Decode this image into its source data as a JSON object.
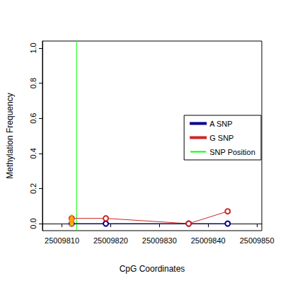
{
  "chart_data": {
    "type": "line",
    "x_label": "CpG Coordinates",
    "y_label": "Methylation Frequency",
    "xlim": [
      25009806,
      25009851
    ],
    "xticks": [
      25009810,
      25009820,
      25009830,
      25009840,
      25009850
    ],
    "ylim": [
      -0.04,
      1.04
    ],
    "yticks": [
      {
        "value": 0,
        "label": "0.0"
      },
      {
        "value": 0.2,
        "label": "0.2"
      },
      {
        "value": 0.4,
        "label": "0.4"
      },
      {
        "value": 0.6,
        "label": "0.6"
      },
      {
        "value": 0.8,
        "label": "0.8"
      },
      {
        "value": 1,
        "label": "1.0"
      }
    ],
    "grid": false,
    "legend": "right",
    "series": [
      {
        "name": "A SNP",
        "color": "#00008b",
        "type": "line",
        "marker": "circle_open",
        "x": [
          25009812,
          25009819,
          25009836,
          25009844
        ],
        "values": [
          0,
          0,
          0,
          0
        ]
      },
      {
        "name": "G SNP",
        "color": "#cd2626",
        "type": "line",
        "marker": "circle_open",
        "x": [
          25009812,
          25009819,
          25009836,
          25009844
        ],
        "values": [
          0.03,
          0.03,
          0,
          0.07
        ]
      },
      {
        "name": "SNP Position",
        "color": "#00ff00",
        "type": "vline",
        "x": [
          25009813
        ]
      },
      {
        "color": "#ffa500",
        "type": "scatter",
        "marker": "triangle",
        "x": [
          25009812,
          25009812,
          25009812,
          25009812,
          25009812
        ],
        "values": [
          0.04,
          0.03,
          0.02,
          0.01,
          0
        ]
      }
    ]
  }
}
